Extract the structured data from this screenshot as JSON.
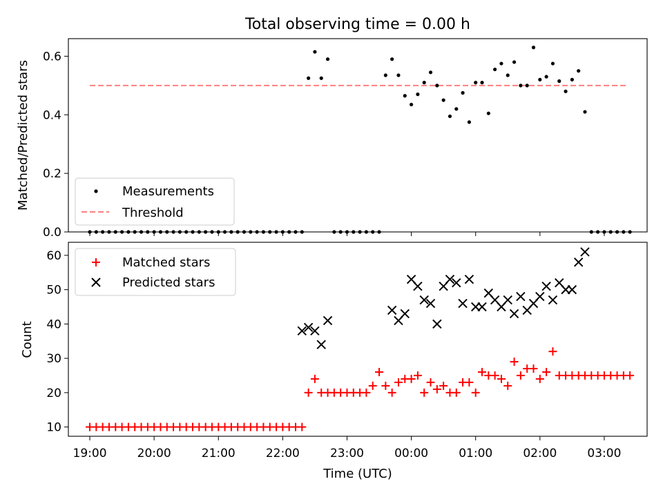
{
  "title": "Total observing time = 0.00 h",
  "colors": {
    "measurement": "#000000",
    "threshold": "#ff7f7f",
    "matched": "#ff0000",
    "predicted": "#000000"
  },
  "chart_data": [
    {
      "type": "scatter",
      "panel": "top",
      "ylabel": "Matched/Predicted stars",
      "xlim": [
        "18:40",
        "03:40"
      ],
      "ylim": [
        0,
        0.66
      ],
      "yticks": [
        "0.0",
        "0.2",
        "0.4",
        "0.6"
      ],
      "legend_position": "lower-left",
      "series": [
        {
          "name": "Measurements",
          "marker": "dot",
          "x": [
            "19:00",
            "19:06",
            "19:12",
            "19:18",
            "19:24",
            "19:30",
            "19:36",
            "19:42",
            "19:48",
            "19:54",
            "20:00",
            "20:06",
            "20:12",
            "20:18",
            "20:24",
            "20:30",
            "20:36",
            "20:42",
            "20:48",
            "20:54",
            "21:00",
            "21:06",
            "21:12",
            "21:18",
            "21:24",
            "21:30",
            "21:36",
            "21:42",
            "21:48",
            "21:54",
            "22:00",
            "22:06",
            "22:12",
            "22:18",
            "22:24",
            "22:30",
            "22:36",
            "22:42",
            "22:48",
            "22:54",
            "23:00",
            "23:06",
            "23:12",
            "23:18",
            "23:24",
            "23:30",
            "23:36",
            "23:42",
            "23:48",
            "23:54",
            "00:00",
            "00:06",
            "00:12",
            "00:18",
            "00:24",
            "00:30",
            "00:36",
            "00:42",
            "00:48",
            "00:54",
            "01:00",
            "01:06",
            "01:12",
            "01:18",
            "01:24",
            "01:30",
            "01:36",
            "01:42",
            "01:48",
            "01:54",
            "02:00",
            "02:06",
            "02:12",
            "02:18",
            "02:24",
            "02:30",
            "02:36",
            "02:42",
            "02:48",
            "02:54",
            "03:00",
            "03:06",
            "03:12",
            "03:18",
            "03:24"
          ],
          "y": [
            0,
            0,
            0,
            0,
            0,
            0,
            0,
            0,
            0,
            0,
            0,
            0,
            0,
            0,
            0,
            0,
            0,
            0,
            0,
            0,
            0,
            0,
            0,
            0,
            0,
            0,
            0,
            0,
            0,
            0,
            0,
            0,
            0,
            0,
            0.525,
            0.615,
            0.525,
            0.59,
            0,
            0,
            0,
            0,
            0,
            0,
            0,
            0,
            0.535,
            0.59,
            0.535,
            0.465,
            0.435,
            0.47,
            0.51,
            0.545,
            0.5,
            0.45,
            0.395,
            0.42,
            0.475,
            0.375,
            0.51,
            0.51,
            0.405,
            0.555,
            0.575,
            0.535,
            0.58,
            0.5,
            0.5,
            0.63,
            0.52,
            0.53,
            0.575,
            0.515,
            0.48,
            0.52,
            0.55,
            0.41,
            0,
            0,
            0,
            0,
            0,
            0,
            0
          ]
        },
        {
          "name": "Threshold",
          "style": "dashed",
          "x": [
            "19:00",
            "03:20"
          ],
          "y": [
            0.5,
            0.5
          ]
        }
      ]
    },
    {
      "type": "scatter",
      "panel": "bottom",
      "xlabel": "Time (UTC)",
      "ylabel": "Count",
      "xlim": [
        "18:40",
        "03:40"
      ],
      "ylim": [
        7.3,
        63.8
      ],
      "xticks": [
        "19:00",
        "20:00",
        "21:00",
        "22:00",
        "23:00",
        "00:00",
        "01:00",
        "02:00",
        "03:00"
      ],
      "yticks": [
        "10",
        "20",
        "30",
        "40",
        "50",
        "60"
      ],
      "legend_position": "upper-left",
      "series": [
        {
          "name": "Matched stars",
          "marker": "plus",
          "x": [
            "19:00",
            "19:06",
            "19:12",
            "19:18",
            "19:24",
            "19:30",
            "19:36",
            "19:42",
            "19:48",
            "19:54",
            "20:00",
            "20:06",
            "20:12",
            "20:18",
            "20:24",
            "20:30",
            "20:36",
            "20:42",
            "20:48",
            "20:54",
            "21:00",
            "21:06",
            "21:12",
            "21:18",
            "21:24",
            "21:30",
            "21:36",
            "21:42",
            "21:48",
            "21:54",
            "22:00",
            "22:06",
            "22:12",
            "22:18",
            "22:24",
            "22:30",
            "22:36",
            "22:42",
            "22:48",
            "22:54",
            "23:00",
            "23:06",
            "23:12",
            "23:18",
            "23:24",
            "23:30",
            "23:36",
            "23:42",
            "23:48",
            "23:54",
            "00:00",
            "00:06",
            "00:12",
            "00:18",
            "00:24",
            "00:30",
            "00:36",
            "00:42",
            "00:48",
            "00:54",
            "01:00",
            "01:06",
            "01:12",
            "01:18",
            "01:24",
            "01:30",
            "01:36",
            "01:42",
            "01:48",
            "01:54",
            "02:00",
            "02:06",
            "02:12",
            "02:18",
            "02:24",
            "02:30",
            "02:36",
            "02:42",
            "02:48",
            "02:54",
            "03:00",
            "03:06",
            "03:12",
            "03:18",
            "03:24"
          ],
          "y": [
            10,
            10,
            10,
            10,
            10,
            10,
            10,
            10,
            10,
            10,
            10,
            10,
            10,
            10,
            10,
            10,
            10,
            10,
            10,
            10,
            10,
            10,
            10,
            10,
            10,
            10,
            10,
            10,
            10,
            10,
            10,
            10,
            10,
            10,
            20,
            24,
            20,
            20,
            20,
            20,
            20,
            20,
            20,
            20,
            22,
            26,
            22,
            20,
            23,
            24,
            24,
            25,
            20,
            23,
            21,
            22,
            20,
            20,
            23,
            23,
            20,
            26,
            25,
            25,
            24,
            22,
            29,
            25,
            27,
            27,
            24,
            26,
            32,
            25,
            25,
            25,
            25,
            25,
            25,
            25,
            25,
            25,
            25,
            25,
            25
          ]
        },
        {
          "name": "Predicted stars",
          "marker": "x",
          "x": [
            "22:18",
            "22:24",
            "22:30",
            "22:36",
            "22:42",
            "23:42",
            "23:48",
            "23:54",
            "00:00",
            "00:06",
            "00:12",
            "00:18",
            "00:24",
            "00:30",
            "00:36",
            "00:42",
            "00:48",
            "00:54",
            "01:00",
            "01:06",
            "01:12",
            "01:18",
            "01:24",
            "01:30",
            "01:36",
            "01:42",
            "01:48",
            "01:54",
            "02:00",
            "02:06",
            "02:12",
            "02:18",
            "02:24",
            "02:30",
            "02:36",
            "02:42"
          ],
          "y": [
            38,
            39,
            38,
            34,
            41,
            44,
            41,
            43,
            53,
            51,
            47,
            46,
            40,
            51,
            53,
            52,
            46,
            53,
            45,
            45,
            49,
            47,
            45,
            47,
            43,
            48,
            44,
            46,
            48,
            51,
            47,
            52,
            50,
            50,
            58,
            61
          ]
        }
      ]
    }
  ]
}
